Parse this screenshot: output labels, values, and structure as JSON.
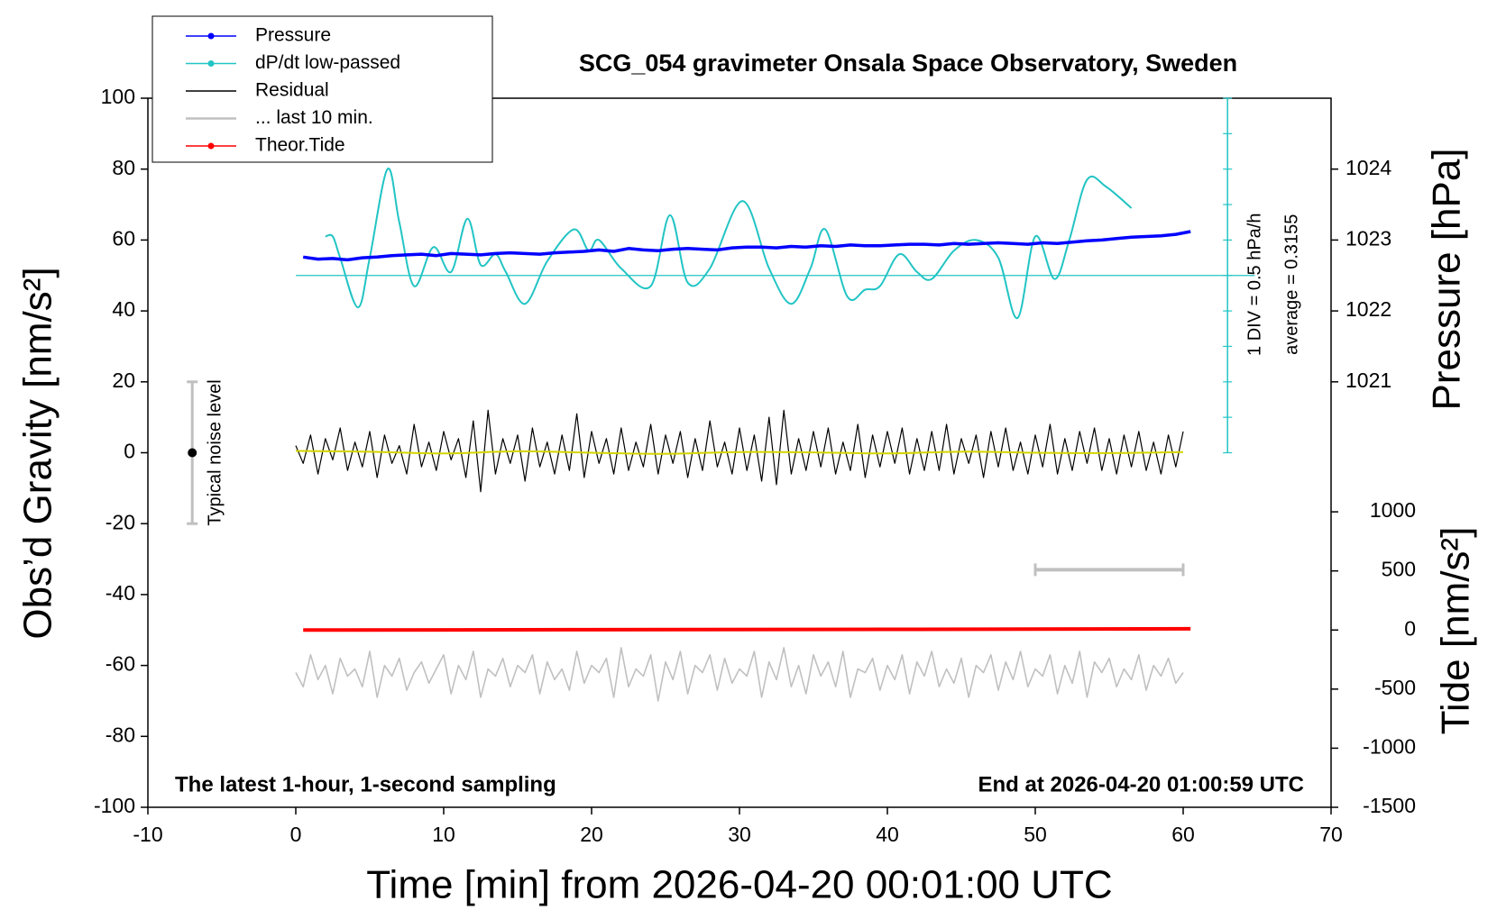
{
  "chart_data": {
    "type": "line",
    "title": "SCG_054 gravimeter Onsala Space Observatory, Sweden",
    "annotation_left": "The latest 1-hour, 1-second sampling",
    "annotation_right": "End at 2026-04-20 01:00:59 UTC",
    "xlabel": "Time [min] from 2026-04-20 00:01:00 UTC",
    "ylabel": "Obs’d Gravity [nm/s²]",
    "y2label": "Pressure [hPa]",
    "y3label": "Tide [nm/s²]",
    "xlim": [
      -10,
      70
    ],
    "xticks": [
      -10,
      0,
      10,
      20,
      30,
      40,
      50,
      60,
      70
    ],
    "ylim": [
      -100,
      100
    ],
    "yticks": [
      -100,
      -80,
      -60,
      -40,
      -20,
      0,
      20,
      40,
      60,
      80,
      100
    ],
    "y2lim": [
      1015,
      1025
    ],
    "y2ticks": [
      1021,
      1022,
      1023,
      1024
    ],
    "y3lim": [
      -1500,
      4500
    ],
    "y3ticks": [
      -1500,
      -1000,
      -500,
      0,
      500,
      1000
    ],
    "legend": "upper left",
    "series": [
      {
        "name": "Pressure",
        "color": "#0000ff",
        "axis": "y2",
        "marker": "circle",
        "x": [
          0.5,
          1.5,
          2.5,
          3.5,
          4.5,
          5.5,
          6.5,
          7.5,
          8.5,
          9.5,
          10.5,
          11.5,
          12.5,
          13.5,
          14.5,
          15.5,
          16.5,
          17.5,
          18.5,
          19.5,
          20.5,
          21.5,
          22.5,
          23.5,
          24.5,
          25.5,
          26.5,
          27.5,
          28.5,
          29.5,
          30.5,
          31.5,
          32.5,
          33.5,
          34.5,
          35.5,
          36.5,
          37.5,
          38.5,
          39.5,
          40.5,
          41.5,
          42.5,
          43.5,
          44.5,
          45.5,
          46.5,
          47.5,
          48.5,
          49.5,
          50.5,
          51.5,
          52.5,
          53.5,
          54.5,
          55.5,
          56.5,
          57.5,
          58.5,
          59.5,
          60.5
        ],
        "values": [
          1022.76,
          1022.73,
          1022.74,
          1022.72,
          1022.75,
          1022.76,
          1022.78,
          1022.79,
          1022.8,
          1022.78,
          1022.81,
          1022.8,
          1022.79,
          1022.81,
          1022.82,
          1022.81,
          1022.8,
          1022.82,
          1022.83,
          1022.84,
          1022.86,
          1022.84,
          1022.88,
          1022.86,
          1022.85,
          1022.87,
          1022.88,
          1022.87,
          1022.86,
          1022.89,
          1022.9,
          1022.9,
          1022.89,
          1022.91,
          1022.9,
          1022.92,
          1022.91,
          1022.93,
          1022.92,
          1022.92,
          1022.93,
          1022.94,
          1022.94,
          1022.93,
          1022.95,
          1022.94,
          1022.95,
          1022.96,
          1022.95,
          1022.94,
          1022.96,
          1022.95,
          1022.97,
          1022.99,
          1023.0,
          1023.02,
          1023.04,
          1023.05,
          1023.06,
          1023.08,
          1023.12
        ]
      },
      {
        "name": "dP/dt low-passed",
        "color": "#22c4c4",
        "axis": "y",
        "marker": "circle",
        "smooth": true,
        "x": [
          2,
          2.5,
          3,
          4.2,
          5,
          6.2,
          7,
          8,
          9.3,
          10.5,
          11.6,
          12.5,
          13.5,
          14.2,
          15.5,
          17,
          18.8,
          19.8,
          20.5,
          22,
          24,
          25.3,
          26.5,
          28,
          30.2,
          32,
          33.5,
          34.8,
          35.8,
          37.3,
          38.5,
          39.5,
          40.8,
          42,
          43,
          44.5,
          46,
          47.5,
          48.8,
          50,
          51.3,
          52.3,
          53.5,
          54.8,
          56.5
        ],
        "values": [
          61,
          61,
          55,
          41,
          55,
          80,
          65,
          47,
          58,
          51,
          66,
          53,
          56,
          51,
          42,
          54,
          63,
          57,
          60,
          52,
          47,
          67,
          48,
          52,
          71,
          52,
          42,
          52,
          63,
          44,
          46,
          47,
          56,
          51,
          49,
          57,
          60,
          55,
          38,
          61,
          49,
          60,
          77,
          75,
          69
        ]
      },
      {
        "name": "Residual",
        "color": "#000000",
        "axis": "y",
        "x": [
          0,
          0.5,
          1,
          1.5,
          2,
          2.5,
          3,
          3.5,
          4,
          4.5,
          5,
          5.5,
          6,
          6.5,
          7,
          7.5,
          8,
          8.5,
          9,
          9.5,
          10,
          10.5,
          11,
          11.5,
          12,
          12.5,
          13,
          13.5,
          14,
          14.5,
          15,
          15.5,
          16,
          16.5,
          17,
          17.5,
          18,
          18.5,
          19,
          19.5,
          20,
          20.5,
          21,
          21.5,
          22,
          22.5,
          23,
          23.5,
          24,
          24.5,
          25,
          25.5,
          26,
          26.5,
          27,
          27.5,
          28,
          28.5,
          29,
          29.5,
          30,
          30.5,
          31,
          31.5,
          32,
          32.5,
          33,
          33.5,
          34,
          34.5,
          35,
          35.5,
          36,
          36.5,
          37,
          37.5,
          38,
          38.5,
          39,
          39.5,
          40,
          40.5,
          41,
          41.5,
          42,
          42.5,
          43,
          43.5,
          44,
          44.5,
          45,
          45.5,
          46,
          46.5,
          47,
          47.5,
          48,
          48.5,
          49,
          49.5,
          50,
          50.5,
          51,
          51.5,
          52,
          52.5,
          53,
          53.5,
          54,
          54.5,
          55,
          55.5,
          56,
          56.5,
          57,
          57.5,
          58,
          58.5,
          59,
          59.5,
          60
        ],
        "values": [
          2,
          -3,
          5,
          -6,
          4,
          -2,
          7,
          -5,
          3,
          -4,
          6,
          -7,
          5,
          -3,
          2,
          -6,
          8,
          -4,
          3,
          -5,
          6,
          -2,
          4,
          -7,
          9,
          -11,
          12,
          -6,
          4,
          -3,
          5,
          -8,
          7,
          -4,
          3,
          -6,
          5,
          -5,
          11,
          -7,
          6,
          -3,
          4,
          -6,
          7,
          -5,
          3,
          -4,
          8,
          -6,
          5,
          -3,
          6,
          -7,
          4,
          -5,
          9,
          -4,
          3,
          -6,
          7,
          -5,
          5,
          -8,
          10,
          -9,
          12,
          -6,
          4,
          -5,
          6,
          -4,
          7,
          -6,
          3,
          -5,
          8,
          -7,
          5,
          -4,
          6,
          -3,
          7,
          -6,
          4,
          -5,
          6,
          -5,
          8,
          -6,
          4,
          -3,
          5,
          -7,
          6,
          -4,
          7,
          -5,
          3,
          -6,
          5,
          -4,
          8,
          -6,
          4,
          -5,
          6,
          -3,
          7,
          -5,
          4,
          -6,
          5,
          -4,
          6,
          -5,
          3,
          -6,
          5,
          -4,
          6
        ]
      },
      {
        "name": "... last 10 min.",
        "color": "#c0c0c0",
        "axis": "y",
        "x": [
          0,
          0.5,
          1,
          1.5,
          2,
          2.5,
          3,
          3.5,
          4,
          4.5,
          5,
          5.5,
          6,
          6.5,
          7,
          7.5,
          8,
          8.5,
          9,
          9.5,
          10,
          10.5,
          11,
          11.5,
          12,
          12.5,
          13,
          13.5,
          14,
          14.5,
          15,
          15.5,
          16,
          16.5,
          17,
          17.5,
          18,
          18.5,
          19,
          19.5,
          20,
          20.5,
          21,
          21.5,
          22,
          22.5,
          23,
          23.5,
          24,
          24.5,
          25,
          25.5,
          26,
          26.5,
          27,
          27.5,
          28,
          28.5,
          29,
          29.5,
          30,
          30.5,
          31,
          31.5,
          32,
          32.5,
          33,
          33.5,
          34,
          34.5,
          35,
          35.5,
          36,
          36.5,
          37,
          37.5,
          38,
          38.5,
          39,
          39.5,
          40,
          40.5,
          41,
          41.5,
          42,
          42.5,
          43,
          43.5,
          44,
          44.5,
          45,
          45.5,
          46,
          46.5,
          47,
          47.5,
          48,
          48.5,
          49,
          49.5,
          50,
          50.5,
          51,
          51.5,
          52,
          52.5,
          53,
          53.5,
          54,
          54.5,
          55,
          55.5,
          56,
          56.5,
          57,
          57.5,
          58,
          58.5,
          59,
          59.5,
          60
        ],
        "values": [
          -62,
          -66,
          -57,
          -64,
          -60,
          -68,
          -58,
          -63,
          -61,
          -66,
          -56,
          -69,
          -60,
          -63,
          -58,
          -67,
          -62,
          -59,
          -65,
          -61,
          -57,
          -68,
          -60,
          -64,
          -56,
          -69,
          -61,
          -63,
          -58,
          -66,
          -60,
          -62,
          -57,
          -68,
          -59,
          -64,
          -61,
          -67,
          -56,
          -65,
          -60,
          -62,
          -58,
          -69,
          -55,
          -66,
          -61,
          -63,
          -57,
          -70,
          -59,
          -64,
          -56,
          -68,
          -60,
          -62,
          -57,
          -67,
          -58,
          -65,
          -61,
          -63,
          -56,
          -69,
          -59,
          -64,
          -55,
          -66,
          -60,
          -68,
          -57,
          -63,
          -59,
          -66,
          -56,
          -69,
          -61,
          -62,
          -58,
          -67,
          -60,
          -64,
          -57,
          -68,
          -59,
          -63,
          -56,
          -66,
          -61,
          -65,
          -58,
          -69,
          -60,
          -62,
          -57,
          -67,
          -59,
          -64,
          -56,
          -66,
          -61,
          -63,
          -57,
          -68,
          -60,
          -65,
          -56,
          -69,
          -59,
          -62,
          -58,
          -66,
          -61,
          -64,
          -57,
          -67,
          -60,
          -63,
          -58,
          -65,
          -62
        ]
      },
      {
        "name": "Theor.Tide",
        "color": "#ff0000",
        "axis": "y3",
        "marker": "circle",
        "x": [
          0.5,
          20,
          40,
          60.5
        ],
        "values": [
          0,
          3,
          6,
          10
        ]
      }
    ],
    "smoothed": {
      "color": "#d4d400",
      "x": [
        0,
        5,
        10,
        15,
        20,
        25,
        30,
        35,
        40,
        45,
        50,
        55,
        60
      ],
      "values": [
        0.5,
        0.3,
        -0.2,
        0.4,
        0,
        -0.3,
        0.2,
        0.1,
        -0.2,
        0.3,
        0,
        -0.1,
        0.2
      ]
    },
    "dpdt_axis": {
      "x": 63,
      "ticks": [
        0,
        10,
        20,
        30,
        40,
        50,
        60,
        70,
        80,
        90,
        100
      ],
      "color": "#22c4c4",
      "label": "1 DIV = 0.5 hPa/h",
      "average_label": "average = 0.3155",
      "average_line": 50
    },
    "noise_level": {
      "x": -7,
      "values": [
        -20,
        0,
        20
      ],
      "label": "Typical noise level"
    },
    "last10_bar": {
      "x": [
        50,
        60
      ],
      "y": -33,
      "color": "#c0c0c0"
    }
  }
}
